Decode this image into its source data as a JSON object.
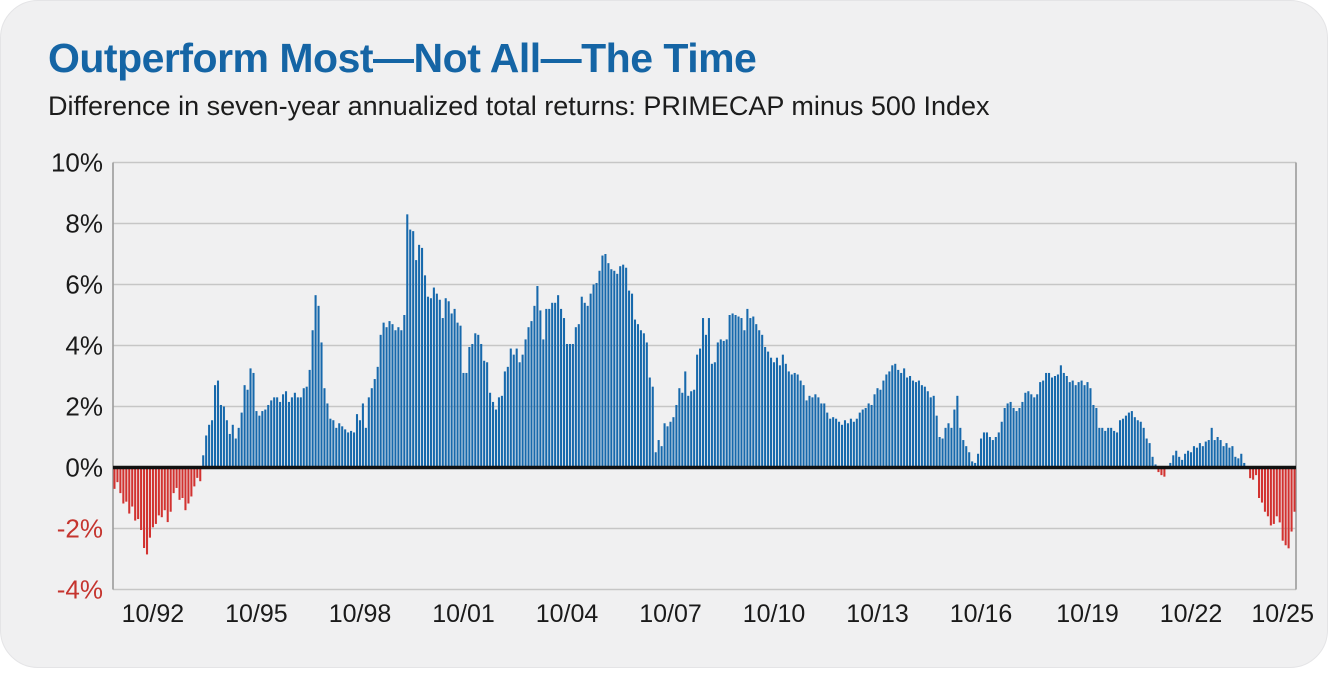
{
  "header": {
    "title": "Outperform Most—Not All—The Time",
    "subtitle": "Difference in seven-year annualized total returns: PRIMECAP minus 500 Index"
  },
  "chart_data": {
    "type": "bar",
    "title": "Outperform Most—Not All—The Time",
    "subtitle": "Difference in seven-year annualized total returns: PRIMECAP minus 500 Index",
    "unit": "percent",
    "frequency": "monthly",
    "ylim": [
      -4,
      10
    ],
    "grid": true,
    "legend": "none",
    "y_ticks": [
      10,
      8,
      6,
      4,
      2,
      0,
      -2,
      -4
    ],
    "y_tick_labels": [
      "10%",
      "8%",
      "6%",
      "4%",
      "2%",
      "0%",
      "-2%",
      "-4%"
    ],
    "x_tick_labels": [
      "10/92",
      "10/95",
      "10/98",
      "10/01",
      "10/04",
      "10/07",
      "10/10",
      "10/13",
      "10/16",
      "10/19",
      "10/22",
      "10/25"
    ],
    "x_tick_indices": [
      13,
      48,
      83,
      118,
      153,
      188,
      223,
      258,
      293,
      329,
      364,
      395
    ],
    "colors": {
      "positive_bar": "#1769ac",
      "negative_bar": "#d23230",
      "negative_tick_label": "#c5342e",
      "tick_label": "#1a1a1a",
      "gridline": "#c6c6c6",
      "spine": "#9b9b9b",
      "zero_line": "#111111",
      "title_blue": "#1565a5",
      "card_background": "#f0f0f1"
    },
    "series": [
      {
        "name": "PRIMECAP minus 500 Index",
        "values": [
          -0.7,
          -0.48,
          -0.84,
          -1.18,
          -1.12,
          -1.51,
          -1.28,
          -1.74,
          -1.69,
          -2.05,
          -2.64,
          -2.85,
          -2.3,
          -1.96,
          -1.85,
          -1.57,
          -1.63,
          -1.4,
          -1.79,
          -1.45,
          -0.84,
          -0.67,
          -1.06,
          -1.0,
          -1.4,
          -1.18,
          -0.95,
          -0.62,
          -0.34,
          -0.45,
          0.4,
          1.05,
          1.4,
          1.55,
          2.7,
          2.85,
          2.05,
          2.0,
          1.55,
          1.1,
          1.4,
          0.95,
          1.3,
          1.8,
          2.7,
          2.55,
          3.25,
          3.1,
          1.85,
          1.7,
          1.85,
          1.9,
          2.05,
          2.2,
          2.3,
          2.3,
          2.15,
          2.4,
          2.5,
          2.15,
          2.3,
          2.45,
          2.3,
          2.3,
          2.6,
          2.65,
          3.2,
          4.5,
          5.65,
          5.3,
          4.1,
          2.6,
          2.1,
          1.6,
          1.55,
          1.3,
          1.45,
          1.35,
          1.25,
          1.15,
          1.2,
          1.15,
          1.75,
          1.55,
          2.1,
          1.3,
          2.3,
          2.6,
          2.9,
          3.3,
          4.35,
          4.75,
          4.6,
          4.8,
          4.7,
          4.5,
          4.6,
          4.5,
          5.0,
          8.3,
          7.8,
          7.75,
          6.8,
          7.3,
          7.2,
          6.3,
          5.6,
          5.55,
          5.9,
          5.7,
          5.5,
          4.9,
          5.55,
          5.45,
          5.05,
          5.2,
          4.75,
          4.65,
          3.1,
          3.1,
          3.95,
          4.05,
          4.4,
          4.35,
          4.05,
          3.5,
          3.45,
          2.45,
          2.15,
          1.9,
          2.3,
          2.35,
          3.15,
          3.3,
          3.9,
          3.7,
          3.9,
          3.45,
          3.7,
          4.2,
          4.6,
          4.8,
          5.3,
          5.95,
          5.15,
          4.2,
          5.2,
          5.2,
          5.4,
          5.4,
          5.65,
          5.2,
          4.9,
          4.05,
          4.05,
          4.05,
          4.6,
          4.7,
          5.6,
          5.4,
          5.3,
          5.7,
          6.0,
          6.05,
          6.45,
          6.95,
          7.0,
          6.7,
          6.5,
          6.45,
          6.35,
          6.6,
          6.65,
          6.55,
          5.8,
          5.7,
          4.85,
          4.7,
          4.5,
          4.4,
          4.1,
          2.95,
          2.65,
          0.5,
          0.9,
          0.7,
          1.45,
          1.35,
          1.5,
          1.65,
          2.05,
          2.6,
          2.45,
          3.15,
          2.35,
          2.5,
          2.55,
          3.7,
          3.9,
          4.9,
          4.35,
          4.9,
          3.4,
          3.45,
          4.1,
          4.2,
          4.15,
          4.2,
          5.0,
          5.05,
          5.0,
          4.95,
          4.9,
          4.5,
          5.2,
          4.9,
          4.95,
          4.7,
          4.5,
          4.35,
          3.95,
          3.8,
          3.6,
          3.45,
          3.6,
          3.35,
          3.7,
          3.4,
          3.15,
          3.05,
          3.1,
          3.05,
          2.85,
          2.7,
          2.2,
          2.35,
          2.3,
          2.4,
          2.3,
          2.1,
          2.1,
          1.8,
          1.6,
          1.65,
          1.6,
          1.5,
          1.4,
          1.55,
          1.45,
          1.6,
          1.5,
          1.6,
          1.8,
          1.9,
          1.95,
          2.1,
          2.05,
          2.4,
          2.6,
          2.55,
          2.85,
          3.05,
          3.15,
          3.35,
          3.4,
          3.2,
          3.1,
          3.25,
          2.95,
          3.0,
          2.85,
          2.8,
          2.85,
          2.7,
          2.65,
          2.5,
          2.3,
          2.35,
          1.7,
          1.0,
          0.95,
          1.3,
          1.45,
          1.3,
          1.9,
          2.35,
          1.3,
          0.9,
          0.7,
          0.5,
          0.2,
          0.15,
          0.45,
          0.95,
          1.15,
          1.15,
          1.0,
          0.9,
          1.0,
          1.15,
          1.5,
          1.95,
          2.1,
          2.15,
          1.95,
          1.85,
          1.95,
          2.15,
          2.45,
          2.5,
          2.4,
          2.3,
          2.4,
          2.8,
          2.85,
          3.1,
          3.1,
          2.95,
          3.0,
          3.05,
          3.35,
          3.1,
          3.0,
          2.8,
          2.85,
          2.7,
          2.8,
          2.85,
          2.7,
          2.8,
          2.6,
          2.05,
          1.95,
          1.3,
          1.3,
          1.2,
          1.3,
          1.3,
          1.2,
          1.15,
          1.55,
          1.6,
          1.7,
          1.8,
          1.85,
          1.65,
          1.55,
          1.5,
          1.3,
          0.95,
          0.8,
          0.35,
          0.1,
          -0.15,
          -0.25,
          -0.3,
          -0.05,
          0.15,
          0.4,
          0.55,
          0.35,
          0.25,
          0.45,
          0.55,
          0.5,
          0.7,
          0.65,
          0.8,
          0.7,
          0.85,
          0.9,
          1.3,
          0.9,
          1.0,
          0.9,
          0.7,
          0.8,
          0.65,
          0.7,
          0.35,
          0.3,
          0.45,
          0.15,
          0.05,
          -0.35,
          -0.4,
          -0.25,
          -1.0,
          -1.15,
          -1.45,
          -1.6,
          -1.9,
          -1.85,
          -1.6,
          -1.8,
          -2.4,
          -2.55,
          -2.65,
          -2.1,
          -1.45
        ]
      }
    ]
  }
}
